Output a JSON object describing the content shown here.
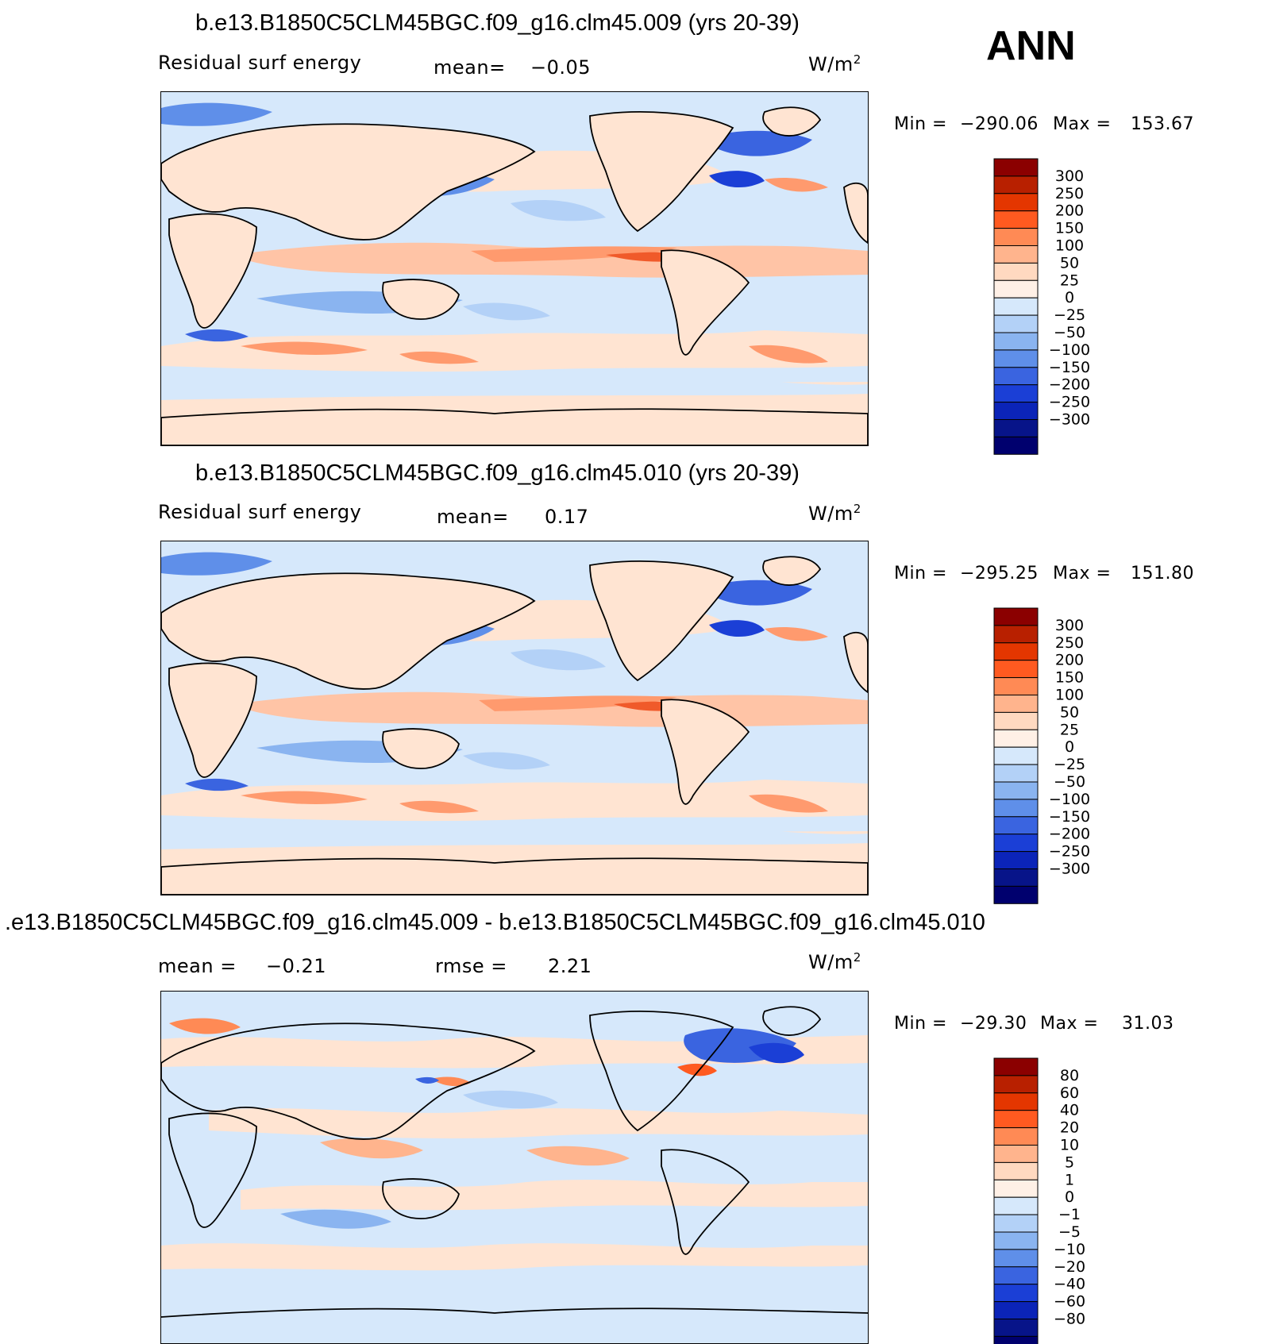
{
  "header": {
    "season": "ANN"
  },
  "colors": {
    "panel_scale": [
      "#8b0000",
      "#b82000",
      "#e43600",
      "#ff5a20",
      "#ff8a55",
      "#ffb48d",
      "#ffd9c0",
      "#fff0e6",
      "#d6e8fb",
      "#b3d1f7",
      "#8ab4f0",
      "#5f8fe9",
      "#3a64e0",
      "#1b3fd6",
      "#0b24b8",
      "#071489",
      "#00006e"
    ],
    "land": "#ffe4d2",
    "ocean": "#d6e8fb"
  },
  "panels": [
    {
      "title": "b.e13.B1850C5CLM45BGC.f09_g16.clm45.009 (yrs 20-39)",
      "variable": "Residual surf energy",
      "mean_label": "mean=",
      "mean_value": "−0.05",
      "units_base": "W/m",
      "units_exp": "2",
      "min_label": "Min =",
      "min_value": "−290.06",
      "max_label": "Max =",
      "max_value": "153.67",
      "levels": [
        "300",
        "250",
        "200",
        "150",
        "100",
        "50",
        "25",
        "0",
        "−25",
        "−50",
        "−100",
        "−150",
        "−200",
        "−250",
        "−300"
      ]
    },
    {
      "title": "b.e13.B1850C5CLM45BGC.f09_g16.clm45.010 (yrs 20-39)",
      "variable": "Residual surf energy",
      "mean_label": "mean=",
      "mean_value": "0.17",
      "units_base": "W/m",
      "units_exp": "2",
      "min_label": "Min =",
      "min_value": "−295.25",
      "max_label": "Max =",
      "max_value": "151.80",
      "levels": [
        "300",
        "250",
        "200",
        "150",
        "100",
        "50",
        "25",
        "0",
        "−25",
        "−50",
        "−100",
        "−150",
        "−200",
        "−250",
        "−300"
      ]
    },
    {
      "title": ".e13.B1850C5CLM45BGC.f09_g16.clm45.009 - b.e13.B1850C5CLM45BGC.f09_g16.clm45.010",
      "mean_label": "mean =",
      "mean_value": "−0.21",
      "rmse_label": "rmse =",
      "rmse_value": "2.21",
      "units_base": "W/m",
      "units_exp": "2",
      "min_label": "Min =",
      "min_value": "−29.30",
      "max_label": "Max =",
      "max_value": "31.03",
      "levels": [
        "80",
        "60",
        "40",
        "20",
        "10",
        "5",
        "1",
        "0",
        "−1",
        "−5",
        "−10",
        "−20",
        "−40",
        "−60",
        "−80"
      ]
    }
  ]
}
